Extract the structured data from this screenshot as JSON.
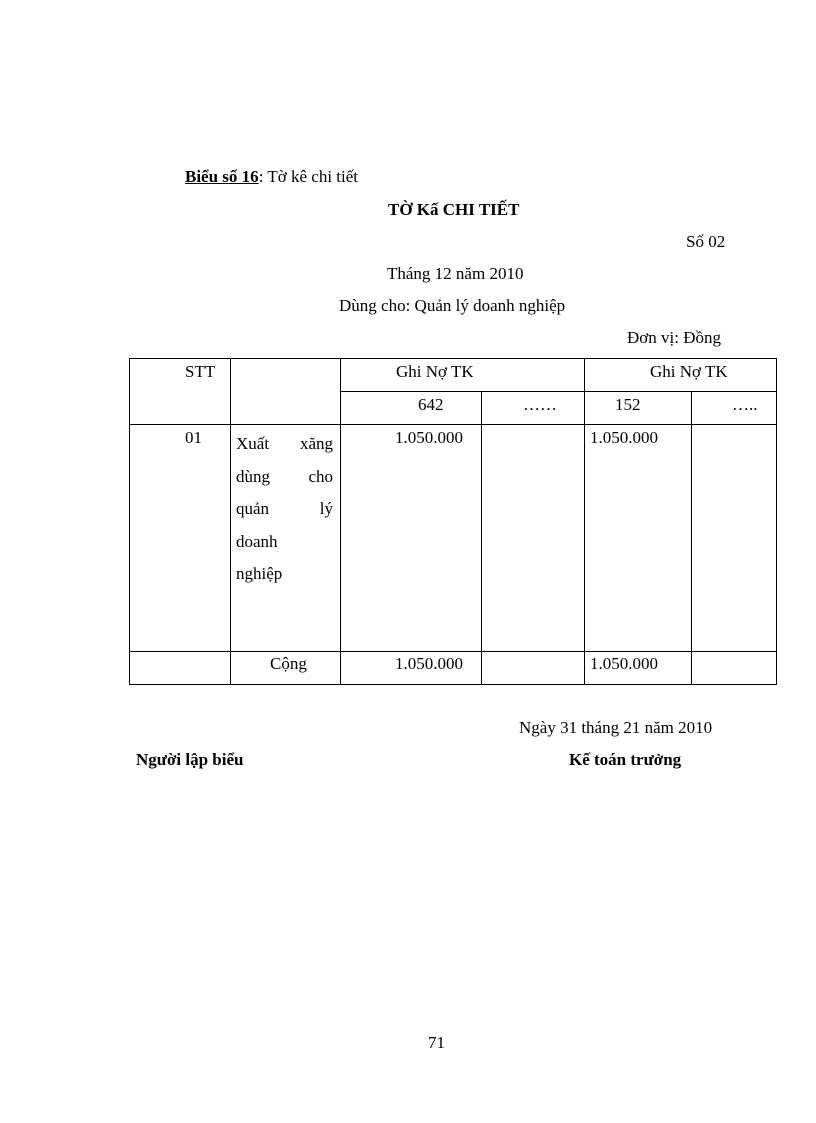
{
  "form_label": "Biểu số 16",
  "form_label_suffix": ": Tờ kê chi tiết",
  "title": "TỜ Kấ CHI TIẾT",
  "number": "Số 02",
  "period": "Tháng 12 năm 2010",
  "used_for": "Dùng cho: Quản lý doanh nghiệp",
  "unit": "Đơn vị: Đồng",
  "table": {
    "header": {
      "stt": "STT",
      "group1": "Ghi Nợ TK",
      "group2": "Ghi Nợ TK",
      "g1c1": "642",
      "g1c2": "……",
      "g2c1": "152",
      "g2c2": "….."
    },
    "rows": [
      {
        "stt": "01",
        "description_lines": [
          "Xuất xăng",
          "dùng cho",
          "quản lý",
          "doanh",
          "nghiệp"
        ],
        "g1c1": "1.050.000",
        "g2c1": "1.050.000"
      }
    ],
    "total": {
      "label": "Cộng",
      "g1c1": "1.050.000",
      "g2c1": "1.050.000"
    }
  },
  "date_line": "Ngày 31 tháng 21 năm 2010",
  "signer_left": "Người lập biểu",
  "signer_right": "Kế toán trưởng",
  "page_number": "71"
}
